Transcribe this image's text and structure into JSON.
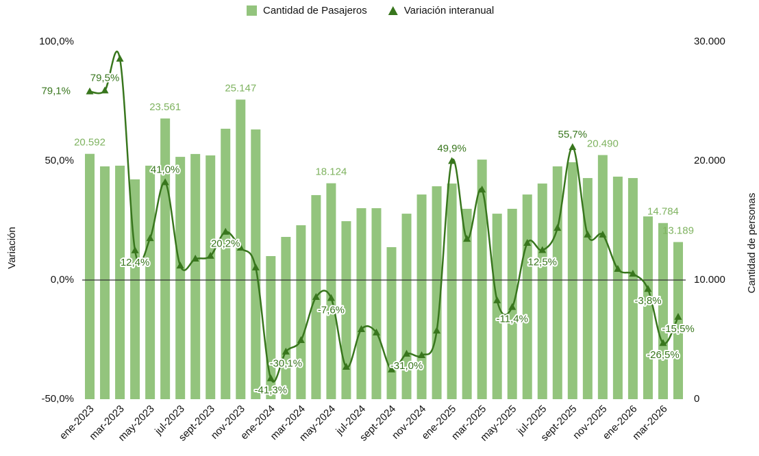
{
  "chart_data": {
    "type": "bar-line",
    "categories": [
      "ene-2023",
      null,
      "mar-2023",
      null,
      "may-2023",
      null,
      "jul-2023",
      null,
      "sept-2023",
      null,
      "nov-2023",
      null,
      "ene-2024",
      null,
      "mar-2024",
      null,
      "may-2024",
      null,
      "jul-2024",
      null,
      "sept-2024",
      null,
      "nov-2024",
      null,
      "ene-2025",
      null,
      "mar-2025",
      null,
      "may-2025",
      null,
      "jul-2025",
      null,
      "sept-2025",
      null,
      "nov-2025",
      null,
      "ene-2026",
      null,
      "mar-2026",
      null
    ],
    "series": [
      {
        "name": "Cantidad de Pasajeros",
        "type": "bar",
        "axis": "y2",
        "color": "#93c47d",
        "values": [
          20592,
          19540,
          19600,
          18450,
          19600,
          23561,
          20340,
          20580,
          20460,
          22700,
          25147,
          22640,
          12010,
          13620,
          14600,
          17130,
          18124,
          14940,
          16030,
          16030,
          12760,
          15570,
          17180,
          17870,
          18100,
          15980,
          20110,
          15570,
          15980,
          17180,
          18100,
          19540,
          19890,
          18560,
          20490,
          18680,
          18560,
          15340,
          14784,
          13189
        ],
        "value_labels": [
          "20.592",
          null,
          null,
          null,
          null,
          "23.561",
          null,
          null,
          null,
          null,
          "25.147",
          null,
          null,
          null,
          null,
          null,
          "18.124",
          null,
          null,
          null,
          null,
          null,
          null,
          null,
          null,
          null,
          null,
          null,
          null,
          null,
          null,
          null,
          null,
          null,
          "20.490",
          null,
          null,
          null,
          "14.784",
          "13.189"
        ]
      },
      {
        "name": "Variación interanual",
        "type": "line",
        "axis": "y",
        "color": "#38761d",
        "values": [
          79.1,
          79.5,
          92.8,
          12.4,
          17.5,
          41.0,
          6.0,
          8.9,
          10.1,
          20.2,
          13.5,
          5.2,
          -41.3,
          -30.1,
          -25.3,
          -7.2,
          -7.6,
          -36.5,
          -20.7,
          -22.1,
          -37.6,
          -31.0,
          -31.6,
          -21.3,
          49.9,
          17.2,
          37.9,
          -8.6,
          -11.4,
          15.5,
          12.5,
          21.8,
          55.7,
          19.0,
          19.0,
          4.6,
          2.6,
          -3.8,
          -26.5,
          -15.5
        ],
        "value_labels": [
          "79,1%",
          "79,5%",
          null,
          "12,4%",
          null,
          "41,0%",
          null,
          null,
          null,
          "20,2%",
          null,
          null,
          "-41,3%",
          "-30,1%",
          null,
          null,
          "-7,6%",
          null,
          null,
          null,
          null,
          "-31,0%",
          null,
          null,
          "49,9%",
          null,
          null,
          null,
          "-11,4%",
          null,
          "12,5%",
          null,
          "55,7%",
          null,
          null,
          null,
          null,
          "-3,8%",
          "-26,5%",
          "-15,5%"
        ]
      }
    ],
    "y_label": "Variación",
    "y2_label": "Cantidad de personas",
    "ylim": [
      -50,
      100
    ],
    "yticks": [
      {
        "value": -50,
        "label": "-50,0%"
      },
      {
        "value": 0,
        "label": "0,0%"
      },
      {
        "value": 50,
        "label": "50,0%"
      },
      {
        "value": 100,
        "label": "100,0%"
      }
    ],
    "y2lim": [
      0,
      30000
    ],
    "y2ticks": [
      0,
      {
        "value": 10000,
        "label": "10.000"
      },
      {
        "value": 20000,
        "label": "20.000"
      },
      {
        "value": 30000,
        "label": "30.000"
      }
    ],
    "legend": "top"
  }
}
